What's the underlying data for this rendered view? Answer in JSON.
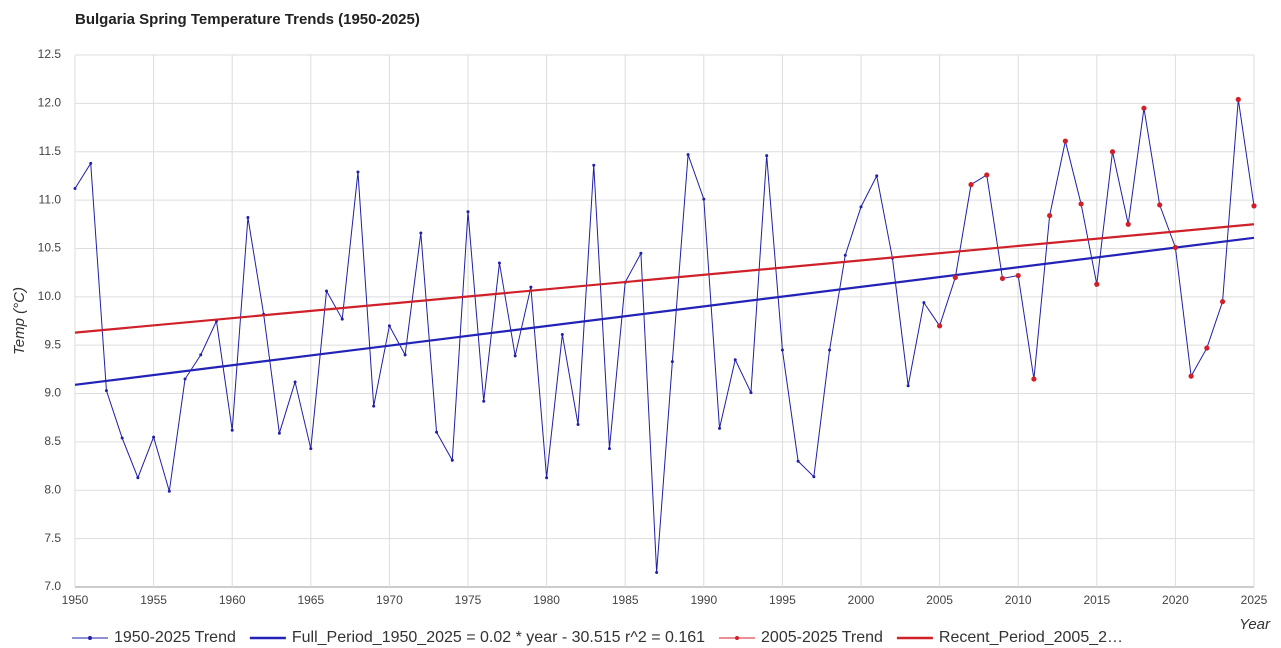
{
  "chart_data": {
    "type": "line",
    "title": "Bulgaria Spring Temperature Trends (1950-2025)",
    "x_label": "Year",
    "y_label": "Temp (°C)",
    "xlim": [
      1950,
      2025
    ],
    "xticks": [
      1950,
      1955,
      1960,
      1965,
      1970,
      1975,
      1980,
      1985,
      1990,
      1995,
      2000,
      2005,
      2010,
      2015,
      2020,
      2025
    ],
    "ylim": [
      7,
      12.5
    ],
    "yticks": [
      {
        "value": 7,
        "label": "7.0"
      },
      7.5,
      {
        "value": 8,
        "label": "8.0"
      },
      8.5,
      {
        "value": 9,
        "label": "9.0"
      },
      9.5,
      {
        "value": 10,
        "label": "10.0"
      },
      10.5,
      {
        "value": 11,
        "label": "11.0"
      },
      11.5,
      {
        "value": 12,
        "label": "12.0"
      },
      12.5
    ],
    "grid": true,
    "series": [
      {
        "name": "1950-2025 Trend",
        "color": "#1f1fa8",
        "style": "line-points",
        "x": [
          1950,
          1951,
          1952,
          1953,
          1954,
          1955,
          1956,
          1957,
          1958,
          1959,
          1960,
          1961,
          1962,
          1963,
          1964,
          1965,
          1966,
          1967,
          1968,
          1969,
          1970,
          1971,
          1972,
          1973,
          1974,
          1975,
          1976,
          1977,
          1978,
          1979,
          1980,
          1981,
          1982,
          1983,
          1984,
          1985,
          1986,
          1987,
          1988,
          1989,
          1990,
          1991,
          1992,
          1993,
          1994,
          1995,
          1996,
          1997,
          1998,
          1999,
          2000,
          2001,
          2002,
          2003,
          2004,
          2005,
          2006,
          2007,
          2008,
          2009,
          2010,
          2011,
          2012,
          2013,
          2014,
          2015,
          2016,
          2017,
          2018,
          2019,
          2020,
          2021,
          2022,
          2023,
          2024,
          2025
        ],
        "values": [
          11.12,
          11.38,
          9.03,
          8.54,
          8.13,
          8.55,
          7.99,
          9.15,
          9.4,
          9.75,
          8.62,
          10.82,
          9.82,
          8.59,
          9.12,
          8.43,
          10.06,
          9.77,
          11.29,
          8.87,
          9.7,
          9.4,
          10.66,
          8.6,
          8.31,
          10.88,
          8.92,
          10.35,
          9.39,
          10.1,
          8.13,
          9.61,
          8.68,
          11.36,
          8.43,
          10.15,
          10.45,
          7.15,
          9.33,
          11.47,
          11.01,
          8.64,
          9.35,
          9.01,
          11.46,
          9.45,
          8.3,
          8.14,
          9.45,
          10.43,
          10.93,
          11.25,
          10.4,
          9.08,
          9.94,
          9.7,
          10.2,
          11.16,
          11.26,
          10.19,
          10.22,
          9.15,
          10.84,
          11.61,
          10.96,
          10.13,
          11.5,
          10.75,
          11.95,
          10.95,
          10.51,
          9.18,
          9.47,
          9.95,
          12.04,
          10.94
        ]
      },
      {
        "name": "Full_Period_1950_2025 = 0.02 * year - 30.515  r^2 = 0.161",
        "color": "#2222b8",
        "style": "trend",
        "x": [
          1950,
          2025
        ],
        "values": [
          9.09,
          10.61
        ]
      },
      {
        "name": "2005-2025 Trend",
        "color": "#d0202a",
        "style": "points",
        "x": [
          2005,
          2006,
          2007,
          2008,
          2009,
          2010,
          2011,
          2012,
          2013,
          2014,
          2015,
          2016,
          2017,
          2018,
          2019,
          2020,
          2021,
          2022,
          2023,
          2024,
          2025
        ],
        "values": [
          9.7,
          10.2,
          11.16,
          11.26,
          10.19,
          10.22,
          9.15,
          10.84,
          11.61,
          10.96,
          10.13,
          11.5,
          10.75,
          11.95,
          10.95,
          10.51,
          9.18,
          9.47,
          9.95,
          12.04,
          10.94
        ]
      },
      {
        "name": "Recent_Period_2005_2…",
        "color": "#d0202a",
        "style": "trend",
        "x": [
          1950,
          2025
        ],
        "values": [
          9.63,
          10.75
        ]
      }
    ]
  }
}
